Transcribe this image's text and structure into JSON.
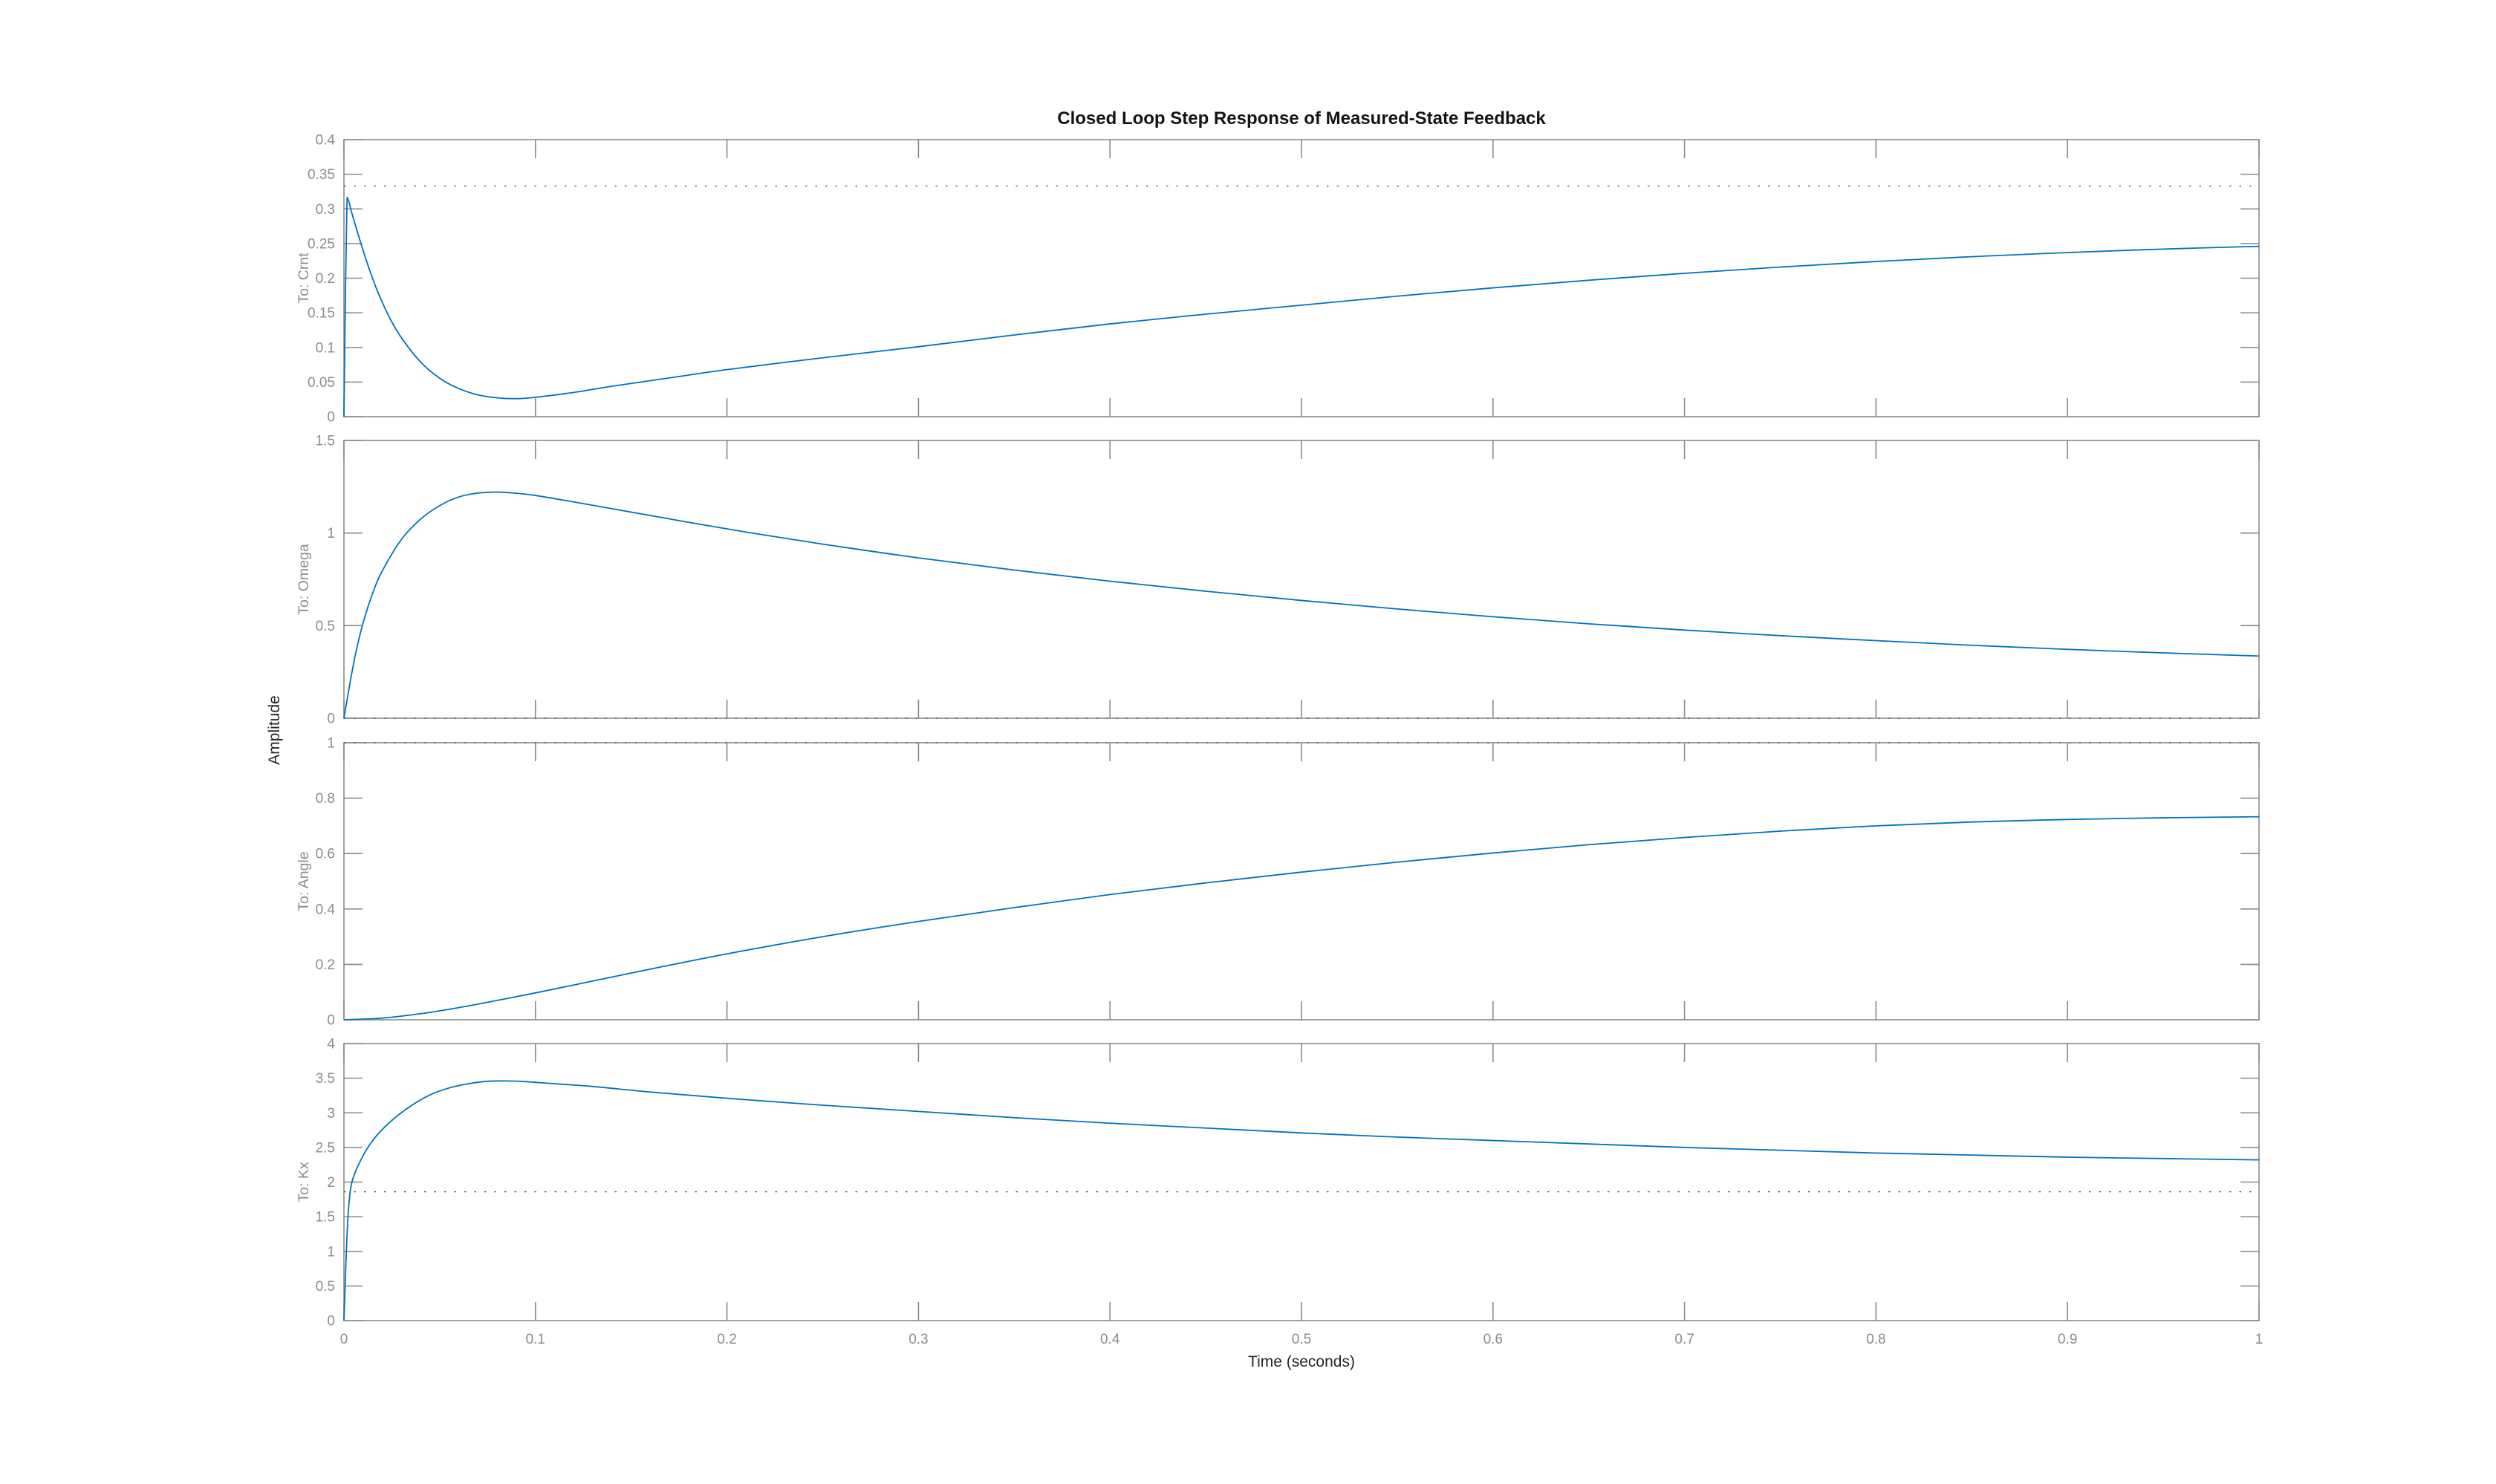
{
  "figure": {
    "title": "Closed Loop Step Response of Measured-State Feedback",
    "xlabel": "Time (seconds)",
    "ylabel": "Amplitude",
    "background": "#ffffff",
    "line_color": "#0072BD",
    "axis_color": "#8a8a8a",
    "tick_label_color": "#8c8c8c",
    "steady_state_line_color": "#4a4a4a"
  },
  "chart_data": [
    {
      "type": "line",
      "ylabel": "To: Crnt",
      "xlim": [
        0,
        1
      ],
      "ylim": [
        0,
        0.4
      ],
      "xticks": [
        0,
        0.1,
        0.2,
        0.3,
        0.4,
        0.5,
        0.6,
        0.7,
        0.8,
        0.9,
        1
      ],
      "xtick_labels": [
        "0",
        "0.1",
        "0.2",
        "0.3",
        "0.4",
        "0.5",
        "0.6",
        "0.7",
        "0.8",
        "0.9",
        "1"
      ],
      "show_xtick_labels": false,
      "yticks": [
        0,
        0.05,
        0.1,
        0.15,
        0.2,
        0.25,
        0.3,
        0.35,
        0.4
      ],
      "ytick_labels": [
        "0",
        "0.05",
        "0.1",
        "0.15",
        "0.2",
        "0.25",
        "0.3",
        "0.35",
        "0.4"
      ],
      "grid": false,
      "legend": "none",
      "steady_state_value": 0.333,
      "series": [
        {
          "name": "step response",
          "points": [
            [
              0,
              0
            ],
            [
              0.0008,
              0.18
            ],
            [
              0.0015,
              0.3
            ],
            [
              0.002,
              0.315
            ],
            [
              0.004,
              0.295
            ],
            [
              0.007,
              0.267
            ],
            [
              0.01,
              0.24
            ],
            [
              0.014,
              0.207
            ],
            [
              0.018,
              0.178
            ],
            [
              0.024,
              0.142
            ],
            [
              0.03,
              0.114
            ],
            [
              0.04,
              0.079
            ],
            [
              0.05,
              0.0555
            ],
            [
              0.06,
              0.0405
            ],
            [
              0.07,
              0.0315
            ],
            [
              0.08,
              0.0272
            ],
            [
              0.09,
              0.026
            ],
            [
              0.1,
              0.028
            ],
            [
              0.12,
              0.035
            ],
            [
              0.14,
              0.044
            ],
            [
              0.17,
              0.056
            ],
            [
              0.2,
              0.068
            ],
            [
              0.25,
              0.085
            ],
            [
              0.3,
              0.101
            ],
            [
              0.35,
              0.118
            ],
            [
              0.4,
              0.134
            ],
            [
              0.45,
              0.148
            ],
            [
              0.5,
              0.161
            ],
            [
              0.55,
              0.174
            ],
            [
              0.6,
              0.186
            ],
            [
              0.65,
              0.197
            ],
            [
              0.7,
              0.207
            ],
            [
              0.75,
              0.216
            ],
            [
              0.8,
              0.224
            ],
            [
              0.85,
              0.231
            ],
            [
              0.9,
              0.237
            ],
            [
              0.95,
              0.242
            ],
            [
              1,
              0.246
            ]
          ]
        }
      ]
    },
    {
      "type": "line",
      "ylabel": "To: Omega",
      "xlim": [
        0,
        1
      ],
      "ylim": [
        0,
        1.5
      ],
      "xticks": [
        0,
        0.1,
        0.2,
        0.3,
        0.4,
        0.5,
        0.6,
        0.7,
        0.8,
        0.9,
        1
      ],
      "xtick_labels": [
        "0",
        "0.1",
        "0.2",
        "0.3",
        "0.4",
        "0.5",
        "0.6",
        "0.7",
        "0.8",
        "0.9",
        "1"
      ],
      "show_xtick_labels": false,
      "yticks": [
        0,
        0.5,
        1,
        1.5
      ],
      "ytick_labels": [
        "0",
        "0.5",
        "1",
        "1.5"
      ],
      "grid": false,
      "legend": "none",
      "steady_state_value": 0,
      "series": [
        {
          "name": "step response",
          "points": [
            [
              0,
              0
            ],
            [
              0.003,
              0.18
            ],
            [
              0.006,
              0.345
            ],
            [
              0.01,
              0.515
            ],
            [
              0.015,
              0.675
            ],
            [
              0.02,
              0.795
            ],
            [
              0.03,
              0.965
            ],
            [
              0.04,
              1.075
            ],
            [
              0.05,
              1.148
            ],
            [
              0.06,
              1.195
            ],
            [
              0.07,
              1.216
            ],
            [
              0.08,
              1.221
            ],
            [
              0.09,
              1.215
            ],
            [
              0.1,
              1.203
            ],
            [
              0.12,
              1.168
            ],
            [
              0.15,
              1.113
            ],
            [
              0.18,
              1.058
            ],
            [
              0.21,
              1.005
            ],
            [
              0.25,
              0.94
            ],
            [
              0.3,
              0.866
            ],
            [
              0.35,
              0.8
            ],
            [
              0.4,
              0.74
            ],
            [
              0.45,
              0.686
            ],
            [
              0.5,
              0.636
            ],
            [
              0.55,
              0.59
            ],
            [
              0.6,
              0.548
            ],
            [
              0.65,
              0.51
            ],
            [
              0.7,
              0.476
            ],
            [
              0.75,
              0.446
            ],
            [
              0.8,
              0.419
            ],
            [
              0.85,
              0.394
            ],
            [
              0.9,
              0.372
            ],
            [
              0.95,
              0.353
            ],
            [
              1,
              0.336
            ]
          ]
        }
      ]
    },
    {
      "type": "line",
      "ylabel": "To: Angle",
      "xlim": [
        0,
        1
      ],
      "ylim": [
        0,
        1
      ],
      "xticks": [
        0,
        0.1,
        0.2,
        0.3,
        0.4,
        0.5,
        0.6,
        0.7,
        0.8,
        0.9,
        1
      ],
      "xtick_labels": [
        "0",
        "0.1",
        "0.2",
        "0.3",
        "0.4",
        "0.5",
        "0.6",
        "0.7",
        "0.8",
        "0.9",
        "1"
      ],
      "show_xtick_labels": false,
      "yticks": [
        0,
        0.2,
        0.4,
        0.6,
        0.8,
        1
      ],
      "ytick_labels": [
        "0",
        "0.2",
        "0.4",
        "0.6",
        "0.8",
        "1"
      ],
      "grid": false,
      "legend": "none",
      "steady_state_value": 1,
      "series": [
        {
          "name": "step response",
          "points": [
            [
              0,
              0
            ],
            [
              0.02,
              0.006
            ],
            [
              0.04,
              0.022
            ],
            [
              0.06,
              0.044
            ],
            [
              0.08,
              0.07
            ],
            [
              0.1,
              0.097
            ],
            [
              0.13,
              0.14
            ],
            [
              0.16,
              0.183
            ],
            [
              0.2,
              0.238
            ],
            [
              0.25,
              0.3
            ],
            [
              0.3,
              0.355
            ],
            [
              0.35,
              0.405
            ],
            [
              0.4,
              0.452
            ],
            [
              0.45,
              0.494
            ],
            [
              0.5,
              0.533
            ],
            [
              0.55,
              0.569
            ],
            [
              0.6,
              0.602
            ],
            [
              0.65,
              0.632
            ],
            [
              0.7,
              0.658
            ],
            [
              0.75,
              0.681
            ],
            [
              0.8,
              0.7
            ],
            [
              0.85,
              0.714
            ],
            [
              0.9,
              0.723
            ],
            [
              0.95,
              0.729
            ],
            [
              1,
              0.733
            ]
          ]
        }
      ]
    },
    {
      "type": "line",
      "ylabel": "To: Kx",
      "xlim": [
        0,
        1
      ],
      "ylim": [
        0,
        4
      ],
      "xticks": [
        0,
        0.1,
        0.2,
        0.3,
        0.4,
        0.5,
        0.6,
        0.7,
        0.8,
        0.9,
        1
      ],
      "xtick_labels": [
        "0",
        "0.1",
        "0.2",
        "0.3",
        "0.4",
        "0.5",
        "0.6",
        "0.7",
        "0.8",
        "0.9",
        "1"
      ],
      "show_xtick_labels": true,
      "yticks": [
        0,
        0.5,
        1,
        1.5,
        2,
        2.5,
        3,
        3.5,
        4
      ],
      "ytick_labels": [
        "0",
        "0.5",
        "1",
        "1.5",
        "2",
        "2.5",
        "3",
        "3.5",
        "4"
      ],
      "grid": false,
      "legend": "none",
      "steady_state_value": 1.86,
      "series": [
        {
          "name": "step response",
          "points": [
            [
              0,
              0
            ],
            [
              0.001,
              0.8
            ],
            [
              0.002,
              1.45
            ],
            [
              0.003,
              1.8
            ],
            [
              0.004,
              1.98
            ],
            [
              0.006,
              2.15
            ],
            [
              0.009,
              2.33
            ],
            [
              0.013,
              2.52
            ],
            [
              0.018,
              2.7
            ],
            [
              0.025,
              2.89
            ],
            [
              0.035,
              3.1
            ],
            [
              0.045,
              3.26
            ],
            [
              0.055,
              3.36
            ],
            [
              0.065,
              3.42
            ],
            [
              0.075,
              3.455
            ],
            [
              0.085,
              3.46
            ],
            [
              0.095,
              3.45
            ],
            [
              0.11,
              3.42
            ],
            [
              0.13,
              3.38
            ],
            [
              0.16,
              3.3
            ],
            [
              0.2,
              3.21
            ],
            [
              0.25,
              3.11
            ],
            [
              0.3,
              3.02
            ],
            [
              0.35,
              2.93
            ],
            [
              0.4,
              2.85
            ],
            [
              0.45,
              2.78
            ],
            [
              0.5,
              2.71
            ],
            [
              0.55,
              2.65
            ],
            [
              0.6,
              2.6
            ],
            [
              0.65,
              2.55
            ],
            [
              0.7,
              2.5
            ],
            [
              0.75,
              2.46
            ],
            [
              0.8,
              2.42
            ],
            [
              0.85,
              2.39
            ],
            [
              0.9,
              2.36
            ],
            [
              0.95,
              2.34
            ],
            [
              1,
              2.32
            ]
          ]
        }
      ]
    }
  ]
}
